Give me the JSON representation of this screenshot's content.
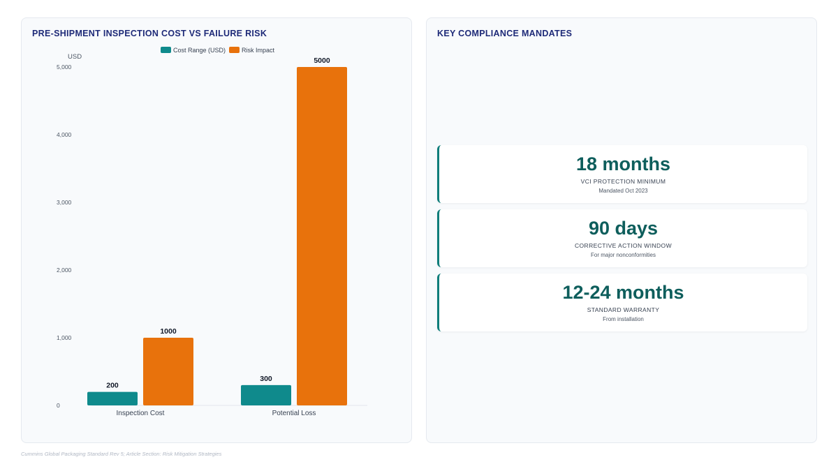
{
  "left_panel": {
    "title": "PRE-SHIPMENT INSPECTION COST VS FAILURE RISK"
  },
  "chart_data": {
    "type": "bar",
    "title": "PRE-SHIPMENT INSPECTION COST VS FAILURE RISK",
    "ylabel": "USD",
    "xlabel": "",
    "categories": [
      "Inspection Cost",
      "Potential Loss"
    ],
    "series": [
      {
        "name": "Cost Range (USD)",
        "values": [
          200,
          300
        ],
        "color": "#0f8a8c"
      },
      {
        "name": "Risk Impact",
        "values": [
          1000,
          5000
        ],
        "color": "#e8720c"
      }
    ],
    "ylim": [
      0,
      5000
    ],
    "yticks": [
      0,
      1000,
      2000,
      3000,
      4000,
      5000
    ],
    "ytick_labels": [
      "0",
      "1,000",
      "2,000",
      "3,000",
      "4,000",
      "5,000"
    ],
    "value_labels": [
      [
        "200",
        "300"
      ],
      [
        "1000",
        "5000"
      ]
    ],
    "legend": "top-center",
    "grid": false
  },
  "right_panel": {
    "title": "KEY COMPLIANCE MANDATES",
    "cards": [
      {
        "value": "18 months",
        "label": "VCI PROTECTION MINIMUM",
        "sub": "Mandated Oct 2023"
      },
      {
        "value": "90 days",
        "label": "CORRECTIVE ACTION WINDOW",
        "sub": "For major nonconformities"
      },
      {
        "value": "12-24 months",
        "label": "STANDARD WARRANTY",
        "sub": "From installation"
      }
    ]
  },
  "footer": {
    "text": "Cummins Global Packaging Standard Rev 5; Article Section: Risk Mitigation Strategies"
  },
  "colors": {
    "accent_teal": "#0f8a8c",
    "accent_orange": "#e8720c",
    "title_navy": "#1e2a78",
    "card_value_teal": "#0e5e5c"
  }
}
